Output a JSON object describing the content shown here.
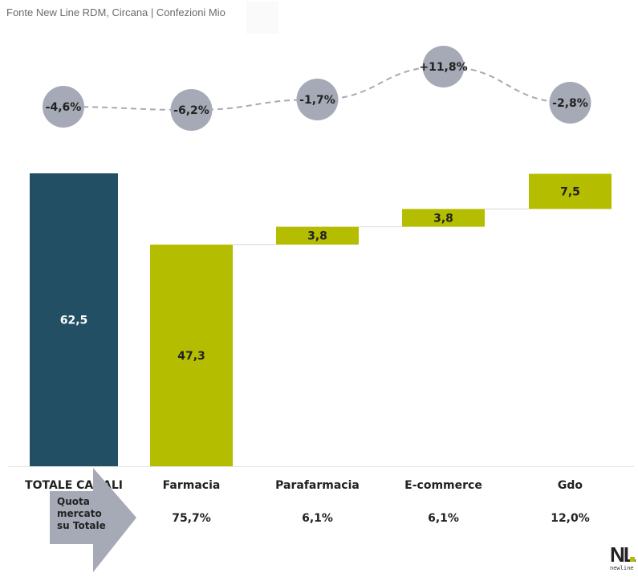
{
  "source": "Fonte New Line RDM, Circana | Confezioni Mio",
  "chart_data": {
    "type": "waterfall",
    "categories": [
      "TOTALE CANALI",
      "Farmacia",
      "Parafarmacia",
      "E-commerce",
      "Gdo"
    ],
    "values": [
      62.5,
      47.3,
      3.8,
      3.8,
      7.5
    ],
    "value_labels": [
      "62,5",
      "47,3",
      "3,8",
      "3,8",
      "7,5"
    ],
    "bar_kind": [
      "total",
      "base",
      "step",
      "step",
      "step"
    ],
    "growth_labels": [
      "-4,6%",
      "-6,2%",
      "-1,7%",
      "+11,8%",
      "-2,8%"
    ],
    "growth_values": [
      -4.6,
      -6.2,
      -1.7,
      11.8,
      -2.8
    ],
    "share_header": "Quota mercato su Totale",
    "share_header_lines": [
      "Quota",
      "mercato",
      "su Totale"
    ],
    "share_labels": [
      "75,7%",
      "6,1%",
      "6,1%",
      "12,0%"
    ],
    "ylim": [
      0,
      62.5
    ],
    "colors": {
      "total": "#224f63",
      "bar": "#b5bd00",
      "bubble": "#a5aab6",
      "arrow": "#a5aab6",
      "text": "#222222",
      "total_text": "#ffffff"
    }
  },
  "logo": {
    "mark": "NL",
    "text": "newline"
  }
}
